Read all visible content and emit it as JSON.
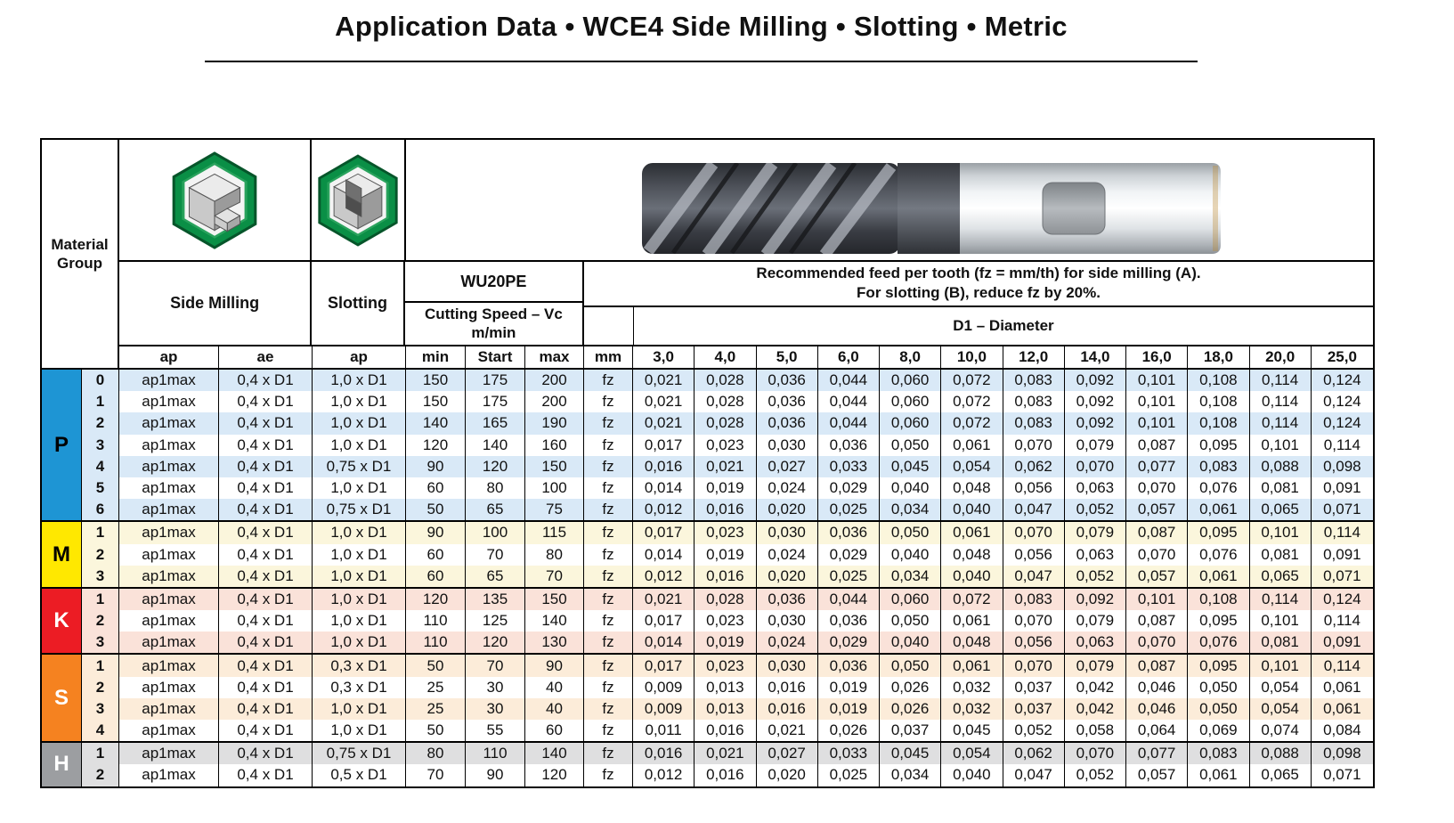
{
  "title": "Application Data • WCE4 Side Milling • Slotting • Metric",
  "header": {
    "material_group_label": "Material Group",
    "side_milling_label": "Side Milling",
    "slotting_label": "Slotting",
    "tool_grade": "WU20PE",
    "cutting_speed_label": "Cutting Speed – Vc",
    "cutting_speed_unit": "m/min",
    "feed_note_line1": "Recommended feed per tooth (fz = mm/th) for side milling (A).",
    "feed_note_line2": "For slotting (B), reduce fz by 20%.",
    "diameter_label": "D1 – Diameter",
    "sub": {
      "ap": "ap",
      "ae": "ae",
      "ap2": "ap",
      "min": "min",
      "start": "Start",
      "max": "max",
      "mm": "mm"
    },
    "diameters": [
      "3,0",
      "4,0",
      "5,0",
      "6,0",
      "8,0",
      "10,0",
      "12,0",
      "14,0",
      "16,0",
      "18,0",
      "20,0",
      "25,0"
    ]
  },
  "icons": {
    "side_milling": "side-milling-step-block-hexagon-icon",
    "slotting": "slotting-groove-block-hexagon-icon",
    "photo": "end-mill-cutter-photo",
    "hex_green": "#0a8f46"
  },
  "groups": [
    {
      "letter": "P",
      "color": "#1e95d4",
      "letter_color": "#000000",
      "tint": "#d9e9f7",
      "rows": [
        {
          "num": "0",
          "ap": "ap1max",
          "ae": "0,4 x D1",
          "ap2": "1,0 x D1",
          "min": "150",
          "start": "175",
          "max": "200",
          "unit": "fz",
          "fz": [
            "0,021",
            "0,028",
            "0,036",
            "0,044",
            "0,060",
            "0,072",
            "0,083",
            "0,092",
            "0,101",
            "0,108",
            "0,114",
            "0,124"
          ]
        },
        {
          "num": "1",
          "ap": "ap1max",
          "ae": "0,4 x D1",
          "ap2": "1,0 x D1",
          "min": "150",
          "start": "175",
          "max": "200",
          "unit": "fz",
          "fz": [
            "0,021",
            "0,028",
            "0,036",
            "0,044",
            "0,060",
            "0,072",
            "0,083",
            "0,092",
            "0,101",
            "0,108",
            "0,114",
            "0,124"
          ]
        },
        {
          "num": "2",
          "ap": "ap1max",
          "ae": "0,4 x D1",
          "ap2": "1,0 x D1",
          "min": "140",
          "start": "165",
          "max": "190",
          "unit": "fz",
          "fz": [
            "0,021",
            "0,028",
            "0,036",
            "0,044",
            "0,060",
            "0,072",
            "0,083",
            "0,092",
            "0,101",
            "0,108",
            "0,114",
            "0,124"
          ]
        },
        {
          "num": "3",
          "ap": "ap1max",
          "ae": "0,4 x D1",
          "ap2": "1,0 x D1",
          "min": "120",
          "start": "140",
          "max": "160",
          "unit": "fz",
          "fz": [
            "0,017",
            "0,023",
            "0,030",
            "0,036",
            "0,050",
            "0,061",
            "0,070",
            "0,079",
            "0,087",
            "0,095",
            "0,101",
            "0,114"
          ]
        },
        {
          "num": "4",
          "ap": "ap1max",
          "ae": "0,4 x D1",
          "ap2": "0,75 x D1",
          "min": "90",
          "start": "120",
          "max": "150",
          "unit": "fz",
          "fz": [
            "0,016",
            "0,021",
            "0,027",
            "0,033",
            "0,045",
            "0,054",
            "0,062",
            "0,070",
            "0,077",
            "0,083",
            "0,088",
            "0,098"
          ]
        },
        {
          "num": "5",
          "ap": "ap1max",
          "ae": "0,4 x D1",
          "ap2": "1,0 x D1",
          "min": "60",
          "start": "80",
          "max": "100",
          "unit": "fz",
          "fz": [
            "0,014",
            "0,019",
            "0,024",
            "0,029",
            "0,040",
            "0,048",
            "0,056",
            "0,063",
            "0,070",
            "0,076",
            "0,081",
            "0,091"
          ]
        },
        {
          "num": "6",
          "ap": "ap1max",
          "ae": "0,4 x D1",
          "ap2": "0,75 x D1",
          "min": "50",
          "start": "65",
          "max": "75",
          "unit": "fz",
          "fz": [
            "0,012",
            "0,016",
            "0,020",
            "0,025",
            "0,034",
            "0,040",
            "0,047",
            "0,052",
            "0,057",
            "0,061",
            "0,065",
            "0,071"
          ]
        }
      ]
    },
    {
      "letter": "M",
      "color": "#ffe800",
      "letter_color": "#000000",
      "tint": "#fbf6dc",
      "rows": [
        {
          "num": "1",
          "ap": "ap1max",
          "ae": "0,4 x D1",
          "ap2": "1,0 x D1",
          "min": "90",
          "start": "100",
          "max": "115",
          "unit": "fz",
          "fz": [
            "0,017",
            "0,023",
            "0,030",
            "0,036",
            "0,050",
            "0,061",
            "0,070",
            "0,079",
            "0,087",
            "0,095",
            "0,101",
            "0,114"
          ]
        },
        {
          "num": "2",
          "ap": "ap1max",
          "ae": "0,4 x D1",
          "ap2": "1,0 x D1",
          "min": "60",
          "start": "70",
          "max": "80",
          "unit": "fz",
          "fz": [
            "0,014",
            "0,019",
            "0,024",
            "0,029",
            "0,040",
            "0,048",
            "0,056",
            "0,063",
            "0,070",
            "0,076",
            "0,081",
            "0,091"
          ]
        },
        {
          "num": "3",
          "ap": "ap1max",
          "ae": "0,4 x D1",
          "ap2": "1,0 x D1",
          "min": "60",
          "start": "65",
          "max": "70",
          "unit": "fz",
          "fz": [
            "0,012",
            "0,016",
            "0,020",
            "0,025",
            "0,034",
            "0,040",
            "0,047",
            "0,052",
            "0,057",
            "0,061",
            "0,065",
            "0,071"
          ]
        }
      ]
    },
    {
      "letter": "K",
      "color": "#ec1c24",
      "letter_color": "#ffffff",
      "tint": "#fae2d9",
      "rows": [
        {
          "num": "1",
          "ap": "ap1max",
          "ae": "0,4 x D1",
          "ap2": "1,0 x D1",
          "min": "120",
          "start": "135",
          "max": "150",
          "unit": "fz",
          "fz": [
            "0,021",
            "0,028",
            "0,036",
            "0,044",
            "0,060",
            "0,072",
            "0,083",
            "0,092",
            "0,101",
            "0,108",
            "0,114",
            "0,124"
          ]
        },
        {
          "num": "2",
          "ap": "ap1max",
          "ae": "0,4 x D1",
          "ap2": "1,0 x D1",
          "min": "110",
          "start": "125",
          "max": "140",
          "unit": "fz",
          "fz": [
            "0,017",
            "0,023",
            "0,030",
            "0,036",
            "0,050",
            "0,061",
            "0,070",
            "0,079",
            "0,087",
            "0,095",
            "0,101",
            "0,114"
          ]
        },
        {
          "num": "3",
          "ap": "ap1max",
          "ae": "0,4 x D1",
          "ap2": "1,0 x D1",
          "min": "110",
          "start": "120",
          "max": "130",
          "unit": "fz",
          "fz": [
            "0,014",
            "0,019",
            "0,024",
            "0,029",
            "0,040",
            "0,048",
            "0,056",
            "0,063",
            "0,070",
            "0,076",
            "0,081",
            "0,091"
          ]
        }
      ]
    },
    {
      "letter": "S",
      "color": "#f58220",
      "letter_color": "#ffffff",
      "tint": "#fcecd9",
      "rows": [
        {
          "num": "1",
          "ap": "ap1max",
          "ae": "0,4 x D1",
          "ap2": "0,3 x D1",
          "min": "50",
          "start": "70",
          "max": "90",
          "unit": "fz",
          "fz": [
            "0,017",
            "0,023",
            "0,030",
            "0,036",
            "0,050",
            "0,061",
            "0,070",
            "0,079",
            "0,087",
            "0,095",
            "0,101",
            "0,114"
          ]
        },
        {
          "num": "2",
          "ap": "ap1max",
          "ae": "0,4 x D1",
          "ap2": "0,3 x D1",
          "min": "25",
          "start": "30",
          "max": "40",
          "unit": "fz",
          "fz": [
            "0,009",
            "0,013",
            "0,016",
            "0,019",
            "0,026",
            "0,032",
            "0,037",
            "0,042",
            "0,046",
            "0,050",
            "0,054",
            "0,061"
          ]
        },
        {
          "num": "3",
          "ap": "ap1max",
          "ae": "0,4 x D1",
          "ap2": "1,0 x D1",
          "min": "25",
          "start": "30",
          "max": "40",
          "unit": "fz",
          "fz": [
            "0,009",
            "0,013",
            "0,016",
            "0,019",
            "0,026",
            "0,032",
            "0,037",
            "0,042",
            "0,046",
            "0,050",
            "0,054",
            "0,061"
          ]
        },
        {
          "num": "4",
          "ap": "ap1max",
          "ae": "0,4 x D1",
          "ap2": "1,0 x D1",
          "min": "50",
          "start": "55",
          "max": "60",
          "unit": "fz",
          "fz": [
            "0,011",
            "0,016",
            "0,021",
            "0,026",
            "0,037",
            "0,045",
            "0,052",
            "0,058",
            "0,064",
            "0,069",
            "0,074",
            "0,084"
          ]
        }
      ]
    },
    {
      "letter": "H",
      "color": "#9c9ea1",
      "letter_color": "#ffffff",
      "tint": "#dfdfe0",
      "rows": [
        {
          "num": "1",
          "ap": "ap1max",
          "ae": "0,4 x D1",
          "ap2": "0,75 x D1",
          "min": "80",
          "start": "110",
          "max": "140",
          "unit": "fz",
          "fz": [
            "0,016",
            "0,021",
            "0,027",
            "0,033",
            "0,045",
            "0,054",
            "0,062",
            "0,070",
            "0,077",
            "0,083",
            "0,088",
            "0,098"
          ]
        },
        {
          "num": "2",
          "ap": "ap1max",
          "ae": "0,4 x D1",
          "ap2": "0,5 x D1",
          "min": "70",
          "start": "90",
          "max": "120",
          "unit": "fz",
          "fz": [
            "0,012",
            "0,016",
            "0,020",
            "0,025",
            "0,034",
            "0,040",
            "0,047",
            "0,052",
            "0,057",
            "0,061",
            "0,065",
            "0,071"
          ]
        }
      ]
    }
  ]
}
